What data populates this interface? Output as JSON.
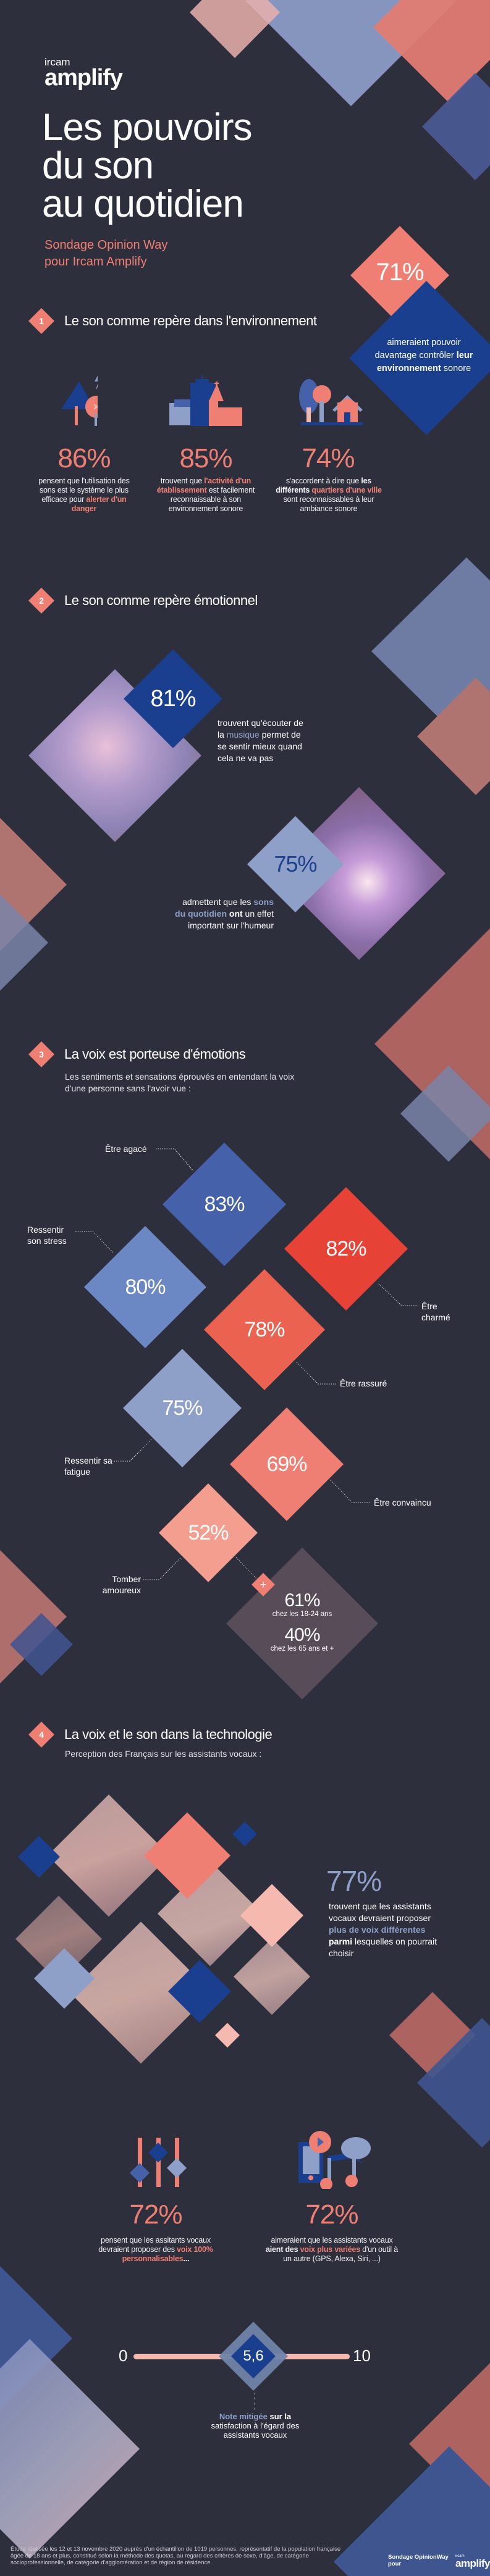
{
  "logo": {
    "top": "ircam",
    "bottom": "amplify"
  },
  "title": [
    "Les pouvoirs",
    "du son",
    "au quotidien"
  ],
  "subtitle": [
    "Sondage Opinion Way",
    "pour Ircam Amplify"
  ],
  "hero": {
    "value": "71%",
    "text": [
      "aimeraient pouvoir davantage contrôler ",
      "leur environnement",
      " sonore"
    ]
  },
  "s1": {
    "num": "1",
    "title": "Le son comme repère dans l'environnement",
    "stats": [
      {
        "icon": "danger-alert-icon",
        "value": "86%",
        "desc": [
          "pensent que l'utilisation des sons est le système le plus efficace pour ",
          "alerter d'un danger",
          ""
        ]
      },
      {
        "icon": "buildings-icon",
        "value": "85%",
        "desc": [
          "trouvent que ",
          "l'activité d'un établissement",
          " est facilement reconnaissable à son environnement sonore"
        ]
      },
      {
        "icon": "neighborhood-icon",
        "value": "74%",
        "desc": [
          "s'accordent à dire que ",
          "les différents ",
          "quartiers d'une ville",
          " sont reconnaissables à leur ambiance sonore"
        ]
      }
    ]
  },
  "s2": {
    "num": "2",
    "title": "Le son comme repère émotionnel",
    "stat1": {
      "value": "81%",
      "text": [
        "trouvent qu'écouter de la ",
        "musique",
        " permet de se sentir mieux quand cela ne va pas"
      ]
    },
    "stat2": {
      "value": "75%",
      "text": [
        "admettent que les ",
        "sons du quotidien",
        " ont",
        " un effet important sur l'humeur"
      ]
    }
  },
  "s3": {
    "num": "3",
    "title": "La voix est porteuse d'émotions",
    "subtitle": "Les sentiments et sensations éprouvés en entendant la voix d'une personne sans l'avoir vue :",
    "items": [
      {
        "label": "Être agacé",
        "value": "83%",
        "color": "#4561a9"
      },
      {
        "label": "Être charmé",
        "value": "82%",
        "color": "#e64236"
      },
      {
        "label": "Ressentir son stress",
        "value": "80%",
        "color": "#6b87c4"
      },
      {
        "label": "Être rassuré",
        "value": "78%",
        "color": "#eb6350"
      },
      {
        "label": "Ressentir sa fatigue",
        "value": "75%",
        "color": "#8ea0c8"
      },
      {
        "label": "Être convaincu",
        "value": "69%",
        "color": "#f07f73"
      },
      {
        "label": "Tomber amoureux",
        "value": "52%",
        "color": "#f49e90"
      }
    ],
    "detail": {
      "plus": "+",
      "v1": "61%",
      "l1": "chez les 18-24 ans",
      "v2": "40%",
      "l2": "chez les 65 ans et +"
    }
  },
  "s4": {
    "num": "4",
    "title": "La voix et le son dans la technologie",
    "subtitle": "Perception des Français sur les assistants vocaux :",
    "stat77": {
      "value": "77%",
      "text": [
        "trouvent que les assistants vocaux devraient proposer ",
        "plus de voix différentes",
        " parmi",
        " lesquelles on pourrait choisir"
      ]
    },
    "stat72a": {
      "value": "72%",
      "text": [
        "pensent que les assitants vocaux devraient proposer des ",
        "voix 100% personnalisables",
        "..."
      ]
    },
    "stat72b": {
      "value": "72%",
      "text": [
        "aimeraient que les assistants vocaux ",
        "aient des ",
        "voix plus variées",
        " d'un outil à un autre (GPS, Alexa, Siri, ...)"
      ]
    },
    "scale": {
      "min": "0",
      "max": "10",
      "value": "5,6",
      "value_num": 5.6,
      "text": [
        "Note mitigée",
        " sur la",
        " satisfaction à l'égard des assistants vocaux"
      ]
    }
  },
  "footer": {
    "note": "Étude réalisée les 12 et 13 novembre 2020 auprès d'un échantillon de 1019 personnes, représentatif de la population française âgée de 18 ans et plus, constitué selon la méthode des quotas, au regard des critères de sexe, d'âge, de catégorie socioprofessionnelle, de catégorie d'agglomération et de région de résidence.",
    "credit": "Sondage OpinionWay pour",
    "logo_top": "ircam",
    "logo_bottom": "amplify"
  },
  "colors": {
    "background": "#2e2f3d",
    "coral": "#f07f73",
    "blue": "#1b3f8f",
    "light_blue": "#8ea0c8",
    "pink": "#f6b9b0"
  }
}
